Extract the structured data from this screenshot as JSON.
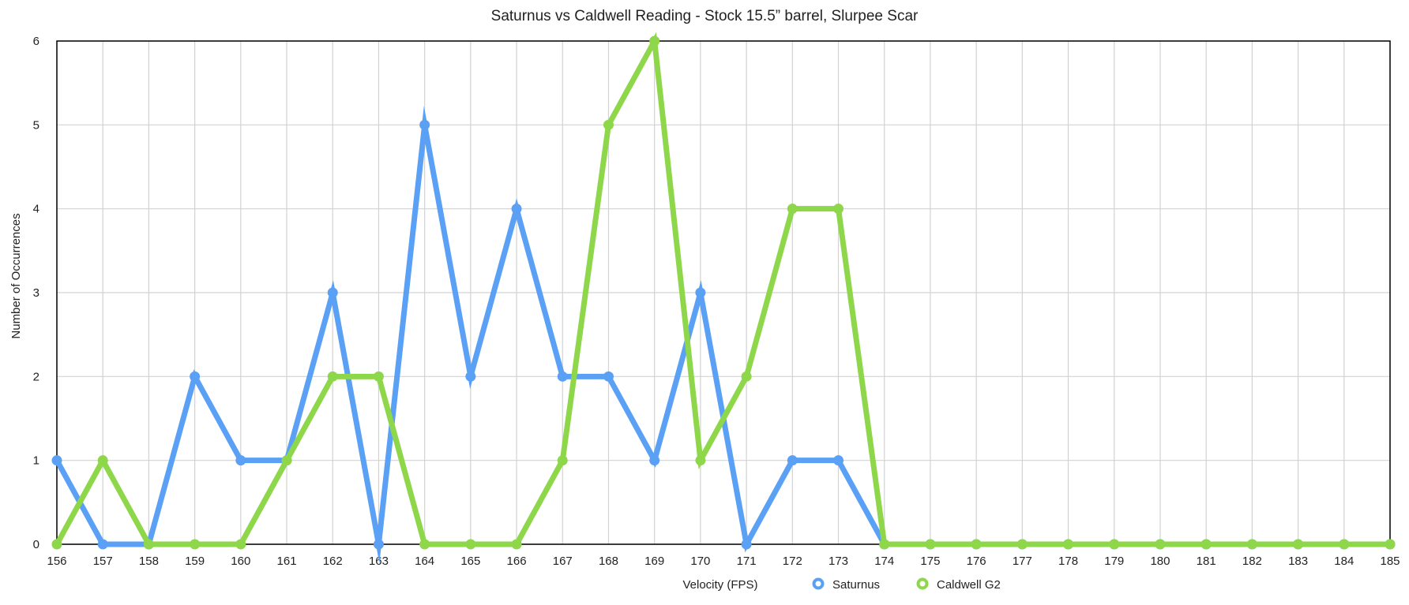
{
  "chart_data": {
    "type": "line",
    "title": "Saturnus vs Caldwell Reading - Stock 15.5” barrel, Slurpee Scar",
    "xlabel": "Velocity (FPS)",
    "ylabel": "Number of Occurrences",
    "x": [
      156,
      157,
      158,
      159,
      160,
      161,
      162,
      163,
      164,
      165,
      166,
      167,
      168,
      169,
      170,
      171,
      172,
      173,
      174,
      175,
      176,
      177,
      178,
      179,
      180,
      181,
      182,
      183,
      184,
      185
    ],
    "ylim": [
      0,
      6
    ],
    "yticks": [
      0,
      1,
      2,
      3,
      4,
      5,
      6
    ],
    "grid": true,
    "legend_position": "bottom-center",
    "series": [
      {
        "name": "Saturnus",
        "color": "#5aa0f5",
        "values": [
          1,
          0,
          0,
          2,
          1,
          1,
          3,
          0,
          5,
          2,
          4,
          2,
          2,
          1,
          3,
          0,
          1,
          1,
          0,
          0,
          0,
          0,
          0,
          0,
          0,
          0,
          0,
          0,
          0,
          0
        ]
      },
      {
        "name": "Caldwell G2",
        "color": "#8ed64a",
        "values": [
          0,
          1,
          0,
          0,
          0,
          1,
          2,
          2,
          0,
          0,
          0,
          1,
          5,
          6,
          1,
          2,
          4,
          4,
          0,
          0,
          0,
          0,
          0,
          0,
          0,
          0,
          0,
          0,
          0,
          0
        ]
      }
    ]
  }
}
